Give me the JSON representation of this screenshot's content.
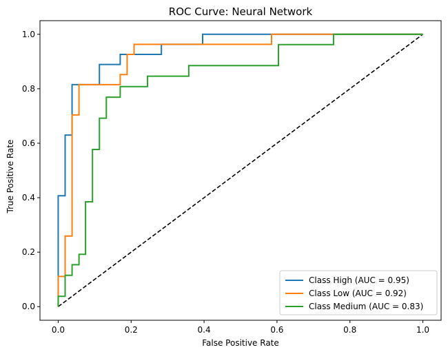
{
  "chart_data": {
    "type": "line",
    "title": "ROC Curve: Neural Network",
    "xlabel": "False Positive Rate",
    "ylabel": "True Positive Rate",
    "xlim": [
      -0.05,
      1.05
    ],
    "ylim": [
      -0.05,
      1.05
    ],
    "xticks": [
      0.0,
      0.2,
      0.4,
      0.6,
      0.8,
      1.0
    ],
    "yticks": [
      0.0,
      0.2,
      0.4,
      0.6,
      0.8,
      1.0
    ],
    "xtick_labels": [
      "0.0",
      "0.2",
      "0.4",
      "0.6",
      "0.8",
      "1.0"
    ],
    "ytick_labels": [
      "0.0",
      "0.2",
      "0.4",
      "0.6",
      "0.8",
      "1.0"
    ],
    "grid": false,
    "legend_position": "lower-right",
    "series": [
      {
        "name": "Class High (AUC = 0.95)",
        "color": "#1f77b4",
        "points": [
          [
            0,
            0
          ],
          [
            0,
            0.407
          ],
          [
            0.019,
            0.407
          ],
          [
            0.019,
            0.63
          ],
          [
            0.038,
            0.63
          ],
          [
            0.038,
            0.815
          ],
          [
            0.113,
            0.815
          ],
          [
            0.113,
            0.889
          ],
          [
            0.17,
            0.889
          ],
          [
            0.17,
            0.926
          ],
          [
            0.283,
            0.926
          ],
          [
            0.283,
            0.963
          ],
          [
            0.396,
            0.963
          ],
          [
            0.396,
            1.0
          ],
          [
            1.0,
            1.0
          ]
        ]
      },
      {
        "name": "Class Low (AUC = 0.92)",
        "color": "#ff7f0e",
        "points": [
          [
            0,
            0
          ],
          [
            0,
            0.111
          ],
          [
            0.019,
            0.111
          ],
          [
            0.019,
            0.259
          ],
          [
            0.038,
            0.259
          ],
          [
            0.038,
            0.704
          ],
          [
            0.057,
            0.704
          ],
          [
            0.057,
            0.815
          ],
          [
            0.17,
            0.815
          ],
          [
            0.17,
            0.852
          ],
          [
            0.189,
            0.852
          ],
          [
            0.189,
            0.926
          ],
          [
            0.208,
            0.926
          ],
          [
            0.208,
            0.963
          ],
          [
            0.585,
            0.963
          ],
          [
            0.585,
            1.0
          ],
          [
            1.0,
            1.0
          ]
        ]
      },
      {
        "name": "Class Medium (AUC = 0.83)",
        "color": "#2ca02c",
        "points": [
          [
            0,
            0
          ],
          [
            0,
            0.038
          ],
          [
            0.019,
            0.038
          ],
          [
            0.019,
            0.115
          ],
          [
            0.038,
            0.115
          ],
          [
            0.038,
            0.154
          ],
          [
            0.057,
            0.154
          ],
          [
            0.057,
            0.192
          ],
          [
            0.075,
            0.192
          ],
          [
            0.075,
            0.385
          ],
          [
            0.094,
            0.385
          ],
          [
            0.094,
            0.577
          ],
          [
            0.113,
            0.577
          ],
          [
            0.113,
            0.692
          ],
          [
            0.132,
            0.692
          ],
          [
            0.132,
            0.769
          ],
          [
            0.17,
            0.769
          ],
          [
            0.17,
            0.808
          ],
          [
            0.245,
            0.808
          ],
          [
            0.245,
            0.846
          ],
          [
            0.358,
            0.846
          ],
          [
            0.358,
            0.885
          ],
          [
            0.604,
            0.885
          ],
          [
            0.604,
            0.962
          ],
          [
            0.755,
            0.962
          ],
          [
            0.755,
            1.0
          ],
          [
            1.0,
            1.0
          ]
        ]
      }
    ],
    "reference_line": {
      "points": [
        [
          0,
          0
        ],
        [
          1,
          1
        ]
      ],
      "color": "#000000",
      "style": "dashed"
    }
  }
}
